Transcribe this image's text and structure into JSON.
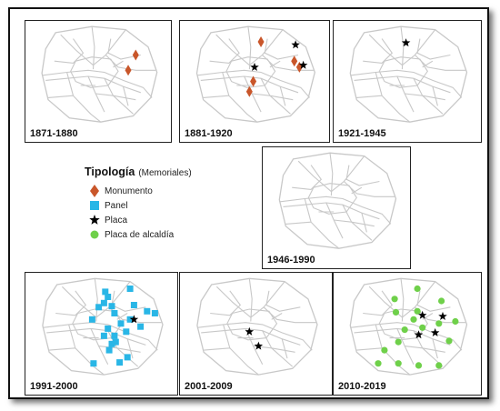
{
  "colors": {
    "monumento": "#c9562a",
    "panel": "#29b6e6",
    "placa": "#000000",
    "alcaldia": "#6fd04a",
    "streets": "#c8c8c8",
    "background": "#ffffff"
  },
  "legend": {
    "title": "Tipología",
    "subtitle": "(Memoriales)",
    "items": [
      {
        "label": "Monumento",
        "icon": "diamond-icon"
      },
      {
        "label": "Panel",
        "icon": "square-icon"
      },
      {
        "label": "Placa",
        "icon": "star-icon"
      },
      {
        "label": "Placa de alcaldía",
        "icon": "circle-icon"
      }
    ]
  },
  "panels": [
    {
      "label": "1871-1880",
      "markers": [
        {
          "type": "monumento",
          "x": 0.8,
          "y": 0.3
        },
        {
          "type": "monumento",
          "x": 0.74,
          "y": 0.45
        }
      ]
    },
    {
      "label": "1881-1920",
      "markers": [
        {
          "type": "monumento",
          "x": 0.55,
          "y": 0.17
        },
        {
          "type": "placa",
          "x": 0.82,
          "y": 0.2
        },
        {
          "type": "placa",
          "x": 0.5,
          "y": 0.42
        },
        {
          "type": "monumento",
          "x": 0.81,
          "y": 0.36
        },
        {
          "type": "monumento",
          "x": 0.85,
          "y": 0.42
        },
        {
          "type": "placa",
          "x": 0.88,
          "y": 0.4
        },
        {
          "type": "monumento",
          "x": 0.49,
          "y": 0.56
        },
        {
          "type": "monumento",
          "x": 0.46,
          "y": 0.66
        }
      ]
    },
    {
      "label": "1921-1945",
      "markers": [
        {
          "type": "placa",
          "x": 0.49,
          "y": 0.18
        }
      ]
    },
    {
      "label": "1946-1990",
      "markers": []
    },
    {
      "label": "1991-2000",
      "markers": [
        {
          "type": "panel",
          "x": 0.53,
          "y": 0.15
        },
        {
          "type": "panel",
          "x": 0.55,
          "y": 0.2
        },
        {
          "type": "panel",
          "x": 0.52,
          "y": 0.26
        },
        {
          "type": "panel",
          "x": 0.48,
          "y": 0.3
        },
        {
          "type": "panel",
          "x": 0.58,
          "y": 0.29
        },
        {
          "type": "panel",
          "x": 0.72,
          "y": 0.12
        },
        {
          "type": "panel",
          "x": 0.75,
          "y": 0.28
        },
        {
          "type": "panel",
          "x": 0.6,
          "y": 0.36
        },
        {
          "type": "panel",
          "x": 0.85,
          "y": 0.34
        },
        {
          "type": "panel",
          "x": 0.91,
          "y": 0.36
        },
        {
          "type": "panel",
          "x": 0.43,
          "y": 0.42
        },
        {
          "type": "panel",
          "x": 0.65,
          "y": 0.46
        },
        {
          "type": "panel",
          "x": 0.72,
          "y": 0.42
        },
        {
          "type": "panel",
          "x": 0.8,
          "y": 0.49
        },
        {
          "type": "panel",
          "x": 0.55,
          "y": 0.51
        },
        {
          "type": "panel",
          "x": 0.69,
          "y": 0.54
        },
        {
          "type": "panel",
          "x": 0.52,
          "y": 0.58
        },
        {
          "type": "panel",
          "x": 0.6,
          "y": 0.58
        },
        {
          "type": "panel",
          "x": 0.61,
          "y": 0.64
        },
        {
          "type": "panel",
          "x": 0.58,
          "y": 0.66
        },
        {
          "type": "panel",
          "x": 0.56,
          "y": 0.72
        },
        {
          "type": "panel",
          "x": 0.7,
          "y": 0.79
        },
        {
          "type": "panel",
          "x": 0.64,
          "y": 0.84
        },
        {
          "type": "panel",
          "x": 0.44,
          "y": 0.85
        },
        {
          "type": "placa",
          "x": 0.75,
          "y": 0.42
        }
      ]
    },
    {
      "label": "2001-2009",
      "markers": [
        {
          "type": "placa",
          "x": 0.45,
          "y": 0.54
        },
        {
          "type": "placa",
          "x": 0.52,
          "y": 0.68
        }
      ]
    },
    {
      "label": "2010-2019",
      "markers": [
        {
          "type": "alcaldia",
          "x": 0.58,
          "y": 0.12
        },
        {
          "type": "alcaldia",
          "x": 0.4,
          "y": 0.22
        },
        {
          "type": "alcaldia",
          "x": 0.77,
          "y": 0.24
        },
        {
          "type": "alcaldia",
          "x": 0.58,
          "y": 0.34
        },
        {
          "type": "alcaldia",
          "x": 0.41,
          "y": 0.35
        },
        {
          "type": "alcaldia",
          "x": 0.55,
          "y": 0.42
        },
        {
          "type": "alcaldia",
          "x": 0.48,
          "y": 0.52
        },
        {
          "type": "alcaldia",
          "x": 0.62,
          "y": 0.5
        },
        {
          "type": "alcaldia",
          "x": 0.75,
          "y": 0.46
        },
        {
          "type": "alcaldia",
          "x": 0.88,
          "y": 0.44
        },
        {
          "type": "alcaldia",
          "x": 0.43,
          "y": 0.64
        },
        {
          "type": "alcaldia",
          "x": 0.32,
          "y": 0.72
        },
        {
          "type": "alcaldia",
          "x": 0.83,
          "y": 0.63
        },
        {
          "type": "alcaldia",
          "x": 0.27,
          "y": 0.85
        },
        {
          "type": "alcaldia",
          "x": 0.43,
          "y": 0.85
        },
        {
          "type": "alcaldia",
          "x": 0.59,
          "y": 0.87
        },
        {
          "type": "alcaldia",
          "x": 0.75,
          "y": 0.87
        },
        {
          "type": "placa",
          "x": 0.62,
          "y": 0.38
        },
        {
          "type": "placa",
          "x": 0.78,
          "y": 0.39
        },
        {
          "type": "placa",
          "x": 0.59,
          "y": 0.57
        },
        {
          "type": "placa",
          "x": 0.72,
          "y": 0.55
        }
      ]
    }
  ]
}
